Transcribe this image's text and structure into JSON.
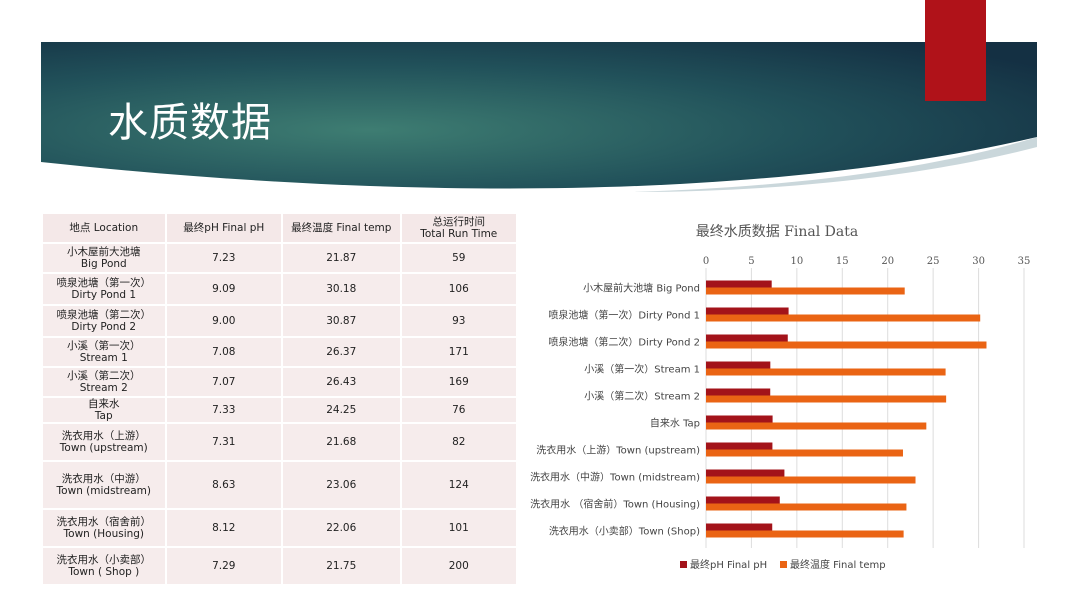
{
  "title": "水质数据",
  "table": {
    "headers": [
      {
        "line1": "地点 Location",
        "line2": ""
      },
      {
        "line1": "最终pH Final pH",
        "line2": ""
      },
      {
        "line1": "最终温度 Final temp",
        "line2": ""
      },
      {
        "line1": "总运行时间",
        "line2": "Total Run Time"
      }
    ],
    "rows": [
      {
        "loc1": "小木屋前大池塘",
        "loc2": "Big Pond",
        "ph": "7.23",
        "temp": "21.87",
        "time": "59"
      },
      {
        "loc1": "喷泉池塘（第一次）",
        "loc2": "Dirty Pond 1",
        "ph": "9.09",
        "temp": "30.18",
        "time": "106"
      },
      {
        "loc1": "喷泉池塘（第二次）",
        "loc2": "Dirty Pond 2",
        "ph": "9.00",
        "temp": "30.87",
        "time": "93"
      },
      {
        "loc1": "小溪（第一次）",
        "loc2": "Stream 1",
        "ph": "7.08",
        "temp": "26.37",
        "time": "171"
      },
      {
        "loc1": "小溪（第二次）",
        "loc2": "Stream 2",
        "ph": "7.07",
        "temp": "26.43",
        "time": "169"
      },
      {
        "loc1": "自来水",
        "loc2": "Tap",
        "ph": "7.33",
        "temp": "24.25",
        "time": "76"
      },
      {
        "loc1": "洗衣用水（上游）",
        "loc2": "Town (upstream)",
        "ph": "7.31",
        "temp": "21.68",
        "time": "82"
      },
      {
        "loc1": "洗衣用水（中游）",
        "loc2": "Town (midstream)",
        "ph": "8.63",
        "temp": "23.06",
        "time": "124"
      },
      {
        "loc1": "洗衣用水（宿舍前）",
        "loc2": "Town (Housing)",
        "ph": "8.12",
        "temp": "22.06",
        "time": "101"
      },
      {
        "loc1": "洗衣用水（小卖部）",
        "loc2": "Town ( Shop )",
        "ph": "7.29",
        "temp": "21.75",
        "time": "200"
      }
    ]
  },
  "chart_data": {
    "type": "bar",
    "orientation": "horizontal",
    "title": "最终水质数据 Final Data",
    "categories": [
      "小木屋前大池塘 Big Pond",
      "喷泉池塘（第一次）Dirty Pond 1",
      "喷泉池塘（第二次）Dirty Pond 2",
      "小溪（第一次）Stream 1",
      "小溪（第二次）Stream 2",
      "自来水 Tap",
      "洗衣用水（上游）Town (upstream)",
      "洗衣用水（中游）Town (midstream)",
      "洗衣用水 （宿舍前）Town (Housing)",
      "洗衣用水（小卖部）Town (Shop)"
    ],
    "series": [
      {
        "name": "最终pH Final pH",
        "color": "#a3131a",
        "values": [
          7.23,
          9.09,
          9.0,
          7.08,
          7.07,
          7.33,
          7.31,
          8.63,
          8.12,
          7.29
        ]
      },
      {
        "name": "最终温度 Final temp",
        "color": "#ea6414",
        "values": [
          21.87,
          30.18,
          30.87,
          26.37,
          26.43,
          24.25,
          21.68,
          23.06,
          22.06,
          21.75
        ]
      }
    ],
    "xlim": [
      0,
      35
    ],
    "xticks": [
      0,
      5,
      10,
      15,
      20,
      25,
      30,
      35
    ],
    "grid": true,
    "legend": "bottom"
  },
  "colors": {
    "banner_dark": "#16364a",
    "banner_light": "#3b7a70",
    "accent_red": "#b01219",
    "table_bg": "#f6ecec"
  }
}
